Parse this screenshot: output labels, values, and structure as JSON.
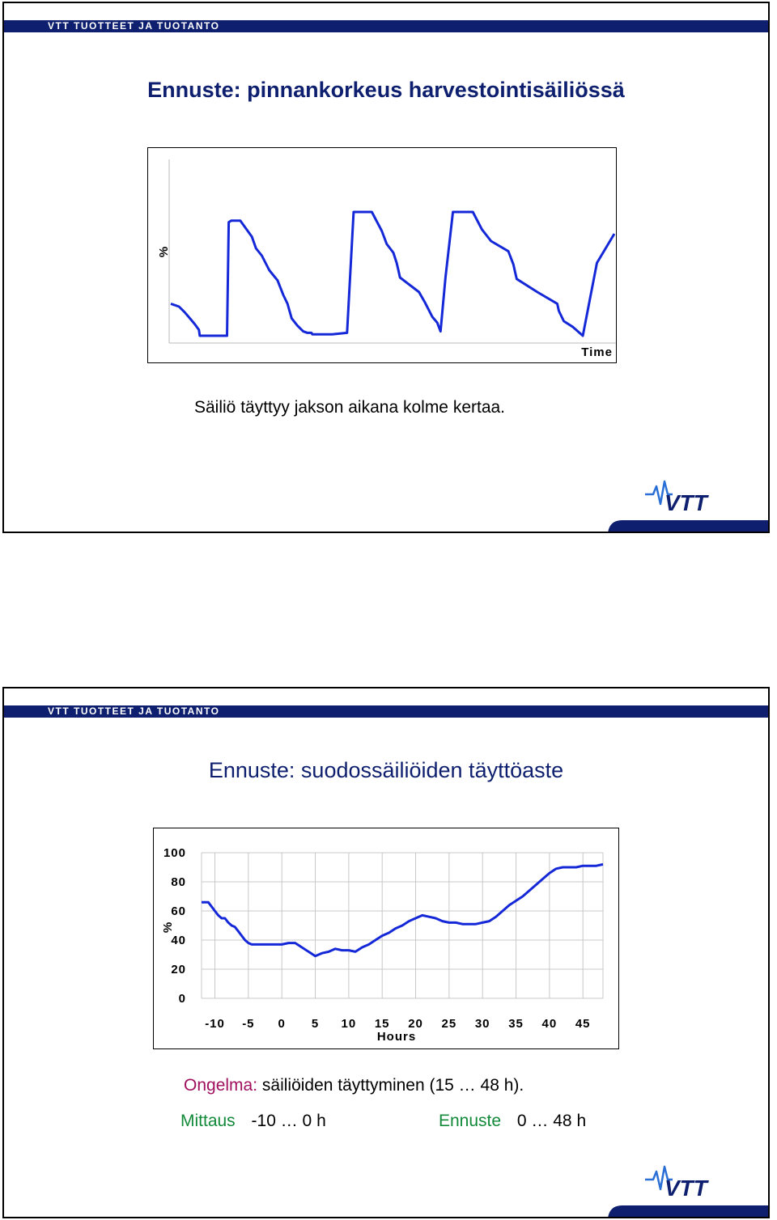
{
  "header_label": "VTT TUOTTEET JA TUOTANTO",
  "brand_color": "#0d1f6e",
  "series_color": "#1428d8",
  "logo_text": "VTT",
  "slide1": {
    "title": "Ennuste: pinnankorkeus harvestointisäiliössä",
    "caption": "Säiliö täyttyy jakson aikana kolme kertaa.",
    "chart_data": {
      "type": "line",
      "xlabel": "Time",
      "ylabel": "%",
      "x": [
        0,
        1,
        1.7,
        2.3,
        2.9,
        3.4,
        3.5,
        6,
        6.8,
        7,
        7.3,
        7.5,
        7.8,
        8.4,
        9.8,
        10.3,
        11,
        11.9,
        12.9,
        13.6,
        14.1,
        14.6,
        15.3,
        16,
        16.5,
        17,
        17.1,
        19.5,
        21.3,
        22.1,
        23.1,
        24.3,
        25.5,
        26.1,
        26.9,
        27.3,
        27.5,
        27.7,
        30,
        30.7,
        31.6,
        32.2,
        32.6,
        33.2,
        34.1,
        35.5,
        36.5,
        37.6,
        38.7,
        40.8,
        41.4,
        41.6,
        41.8,
        44.3,
        46.7,
        46.9,
        47.5,
        48.6,
        49.8,
        51.5,
        53.6
      ],
      "values": [
        22,
        20,
        16,
        12,
        8,
        4,
        0,
        0,
        0,
        78,
        79,
        79,
        79,
        79,
        68,
        60,
        55,
        45,
        38,
        28,
        22,
        12,
        7,
        3,
        2,
        2,
        1,
        1,
        2,
        85,
        85,
        85,
        72,
        63,
        57,
        50,
        45,
        40,
        30,
        23,
        13,
        9,
        3,
        40,
        85,
        85,
        85,
        73,
        65,
        58,
        49,
        44,
        39,
        30,
        22,
        17,
        10,
        6,
        0,
        50,
        70
      ]
    }
  },
  "slide2": {
    "title": "Ennuste: suodossäiliöiden täyttöaste",
    "chart_data": {
      "type": "line",
      "xlabel": "Hours",
      "ylabel": "%",
      "xlim": [
        -12,
        48
      ],
      "ylim": [
        0,
        100
      ],
      "xticks": [
        "-10",
        "-5",
        "0",
        "5",
        "10",
        "15",
        "20",
        "25",
        "30",
        "35",
        "40",
        "45"
      ],
      "yticks": [
        "0",
        "20",
        "40",
        "60",
        "80",
        "100"
      ],
      "grid": true,
      "x": [
        -12,
        -11,
        -10,
        -9.5,
        -9,
        -8.5,
        -8,
        -7.5,
        -7,
        -6.5,
        -6,
        -5.5,
        -5,
        -4.5,
        -4,
        -3,
        -2,
        -1,
        0,
        1,
        2,
        3,
        4,
        5,
        6,
        7,
        8,
        9,
        10,
        11,
        12,
        13,
        14,
        15,
        16,
        17,
        18,
        19,
        20,
        21,
        22,
        23,
        24,
        25,
        26,
        27,
        28,
        29,
        30,
        31,
        32,
        33,
        34,
        35,
        36,
        37,
        38,
        39,
        40,
        41,
        42,
        43,
        44,
        45,
        46,
        47,
        48
      ],
      "values": [
        66,
        66,
        60,
        57,
        55,
        55,
        52,
        50,
        49,
        46,
        43,
        40,
        38,
        37,
        37,
        37,
        37,
        37,
        37,
        38,
        38,
        35,
        32,
        29,
        31,
        32,
        34,
        33,
        33,
        32,
        35,
        37,
        40,
        43,
        45,
        48,
        50,
        53,
        55,
        57,
        56,
        55,
        53,
        52,
        52,
        51,
        51,
        51,
        52,
        53,
        56,
        60,
        64,
        67,
        70,
        74,
        78,
        82,
        86,
        89,
        90,
        90,
        90,
        91,
        91,
        91,
        92
      ]
    },
    "problem_label": "Ongelma:",
    "problem_text": "säiliöiden täyttyminen (15 … 48 h).",
    "measure_label": "Mittaus",
    "measure_range": "-10 … 0 h",
    "forecast_label": "Ennuste",
    "forecast_range": "0 … 48 h",
    "problem_color": "#a0105e",
    "accent_green": "#128a3a"
  }
}
